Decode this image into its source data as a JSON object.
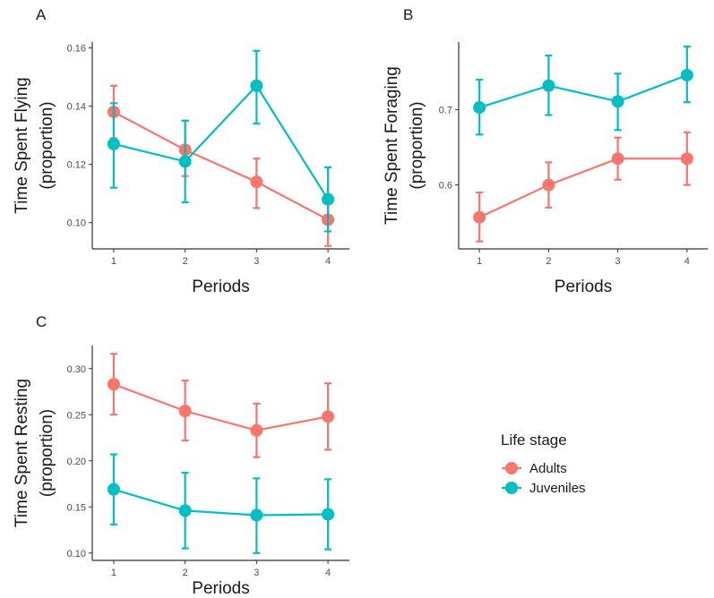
{
  "colors": {
    "Adults": "#F8766D",
    "Juveniles": "#00BFC4",
    "axis": "#333333"
  },
  "legend": {
    "title": "Life stage",
    "items": [
      {
        "label": "Adults",
        "color": "#F8766D"
      },
      {
        "label": "Juveniles",
        "color": "#00BFC4"
      }
    ]
  },
  "chart_data": [
    {
      "panel": "A",
      "type": "line",
      "xlabel": "Periods",
      "ylabel": [
        "Time Spent Flying",
        "(proportion)"
      ],
      "x": [
        1,
        2,
        3,
        4
      ],
      "xlim": [
        0.7,
        4.3
      ],
      "ylim": [
        0.091,
        0.162
      ],
      "yticks": [
        0.1,
        0.12,
        0.14,
        0.16
      ],
      "ytick_labels": [
        "0.10",
        "0.12",
        "0.14",
        "0.16"
      ],
      "series": [
        {
          "name": "Adults",
          "values": [
            0.138,
            0.125,
            0.114,
            0.101
          ],
          "lower": [
            0.129,
            0.116,
            0.105,
            0.092
          ],
          "upper": [
            0.147,
            0.135,
            0.122,
            0.109
          ]
        },
        {
          "name": "Juveniles",
          "values": [
            0.127,
            0.121,
            0.147,
            0.108
          ],
          "lower": [
            0.112,
            0.107,
            0.134,
            0.097
          ],
          "upper": [
            0.141,
            0.135,
            0.159,
            0.119
          ]
        }
      ]
    },
    {
      "panel": "B",
      "type": "line",
      "xlabel": "Periods",
      "ylabel": [
        "Time Spent Foraging",
        "(proportion)"
      ],
      "x": [
        1,
        2,
        3,
        4
      ],
      "xlim": [
        0.7,
        4.3
      ],
      "ylim": [
        0.515,
        0.79
      ],
      "yticks": [
        0.6,
        0.7
      ],
      "ytick_labels": [
        "0.6",
        "0.7"
      ],
      "series": [
        {
          "name": "Adults",
          "values": [
            0.557,
            0.6,
            0.635,
            0.635
          ],
          "lower": [
            0.525,
            0.57,
            0.607,
            0.6
          ],
          "upper": [
            0.59,
            0.63,
            0.663,
            0.67
          ]
        },
        {
          "name": "Juveniles",
          "values": [
            0.703,
            0.732,
            0.711,
            0.746
          ],
          "lower": [
            0.667,
            0.693,
            0.673,
            0.71
          ],
          "upper": [
            0.74,
            0.772,
            0.748,
            0.784
          ]
        }
      ]
    },
    {
      "panel": "C",
      "type": "line",
      "xlabel": "Periods",
      "ylabel": [
        "Time Spent Resting",
        "(proportion)"
      ],
      "x": [
        1,
        2,
        3,
        4
      ],
      "xlim": [
        0.7,
        4.3
      ],
      "ylim": [
        0.092,
        0.325
      ],
      "yticks": [
        0.1,
        0.15,
        0.2,
        0.25,
        0.3
      ],
      "ytick_labels": [
        "0.10",
        "0.15",
        "0.20",
        "0.25",
        "0.30"
      ],
      "series": [
        {
          "name": "Adults",
          "values": [
            0.283,
            0.254,
            0.233,
            0.248
          ],
          "lower": [
            0.25,
            0.222,
            0.204,
            0.212
          ],
          "upper": [
            0.316,
            0.287,
            0.262,
            0.284
          ]
        },
        {
          "name": "Juveniles",
          "values": [
            0.169,
            0.146,
            0.141,
            0.142
          ],
          "lower": [
            0.131,
            0.105,
            0.1,
            0.104
          ],
          "upper": [
            0.207,
            0.187,
            0.181,
            0.18
          ]
        }
      ]
    }
  ]
}
